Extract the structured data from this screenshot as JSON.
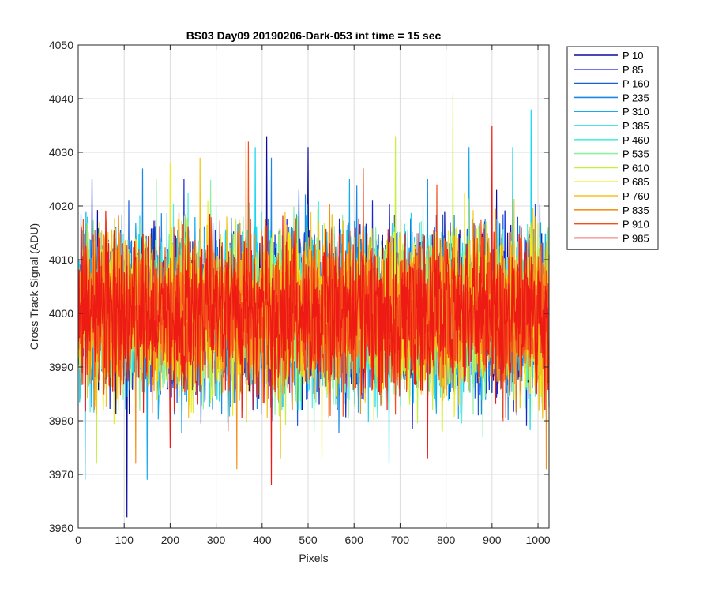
{
  "chart_data": {
    "type": "line",
    "title": "BS03 Day09 20190206-Dark-053 int time = 15 sec",
    "xlabel": "Pixels",
    "ylabel": "Cross Track Signal (ADU)",
    "xlim": [
      0,
      1024
    ],
    "ylim": [
      3960,
      4050
    ],
    "xticks": [
      "0",
      "100",
      "200",
      "300",
      "400",
      "500",
      "600",
      "700",
      "800",
      "900",
      "1000"
    ],
    "yticks": [
      "3960",
      "3970",
      "3980",
      "3990",
      "4000",
      "4010",
      "4020",
      "4030",
      "4040",
      "4050"
    ],
    "grid": true,
    "legend_position": "outside-top-right",
    "noise": {
      "center": 4000,
      "amplitude": 12
    },
    "series": [
      {
        "name": "P 10",
        "color": "#0d0d9e",
        "spikes": [
          [
            106,
            3962
          ],
          [
            410,
            4033
          ],
          [
            500,
            4031
          ],
          [
            910,
            4023
          ]
        ]
      },
      {
        "name": "P 85",
        "color": "#1425d6",
        "spikes": [
          [
            30,
            4025
          ],
          [
            230,
            4025
          ],
          [
            640,
            4021
          ],
          [
            975,
            3979
          ]
        ]
      },
      {
        "name": "P 160",
        "color": "#1a5bdc",
        "spikes": [
          [
            110,
            4021
          ],
          [
            480,
            4023
          ],
          [
            870,
            3981
          ]
        ]
      },
      {
        "name": "P 235",
        "color": "#1c88e6",
        "spikes": [
          [
            140,
            4027
          ],
          [
            420,
            4029
          ],
          [
            760,
            4025
          ]
        ]
      },
      {
        "name": "P 310",
        "color": "#18a9ea",
        "spikes": [
          [
            15,
            3969
          ],
          [
            150,
            3969
          ],
          [
            590,
            4025
          ],
          [
            850,
            4031
          ]
        ]
      },
      {
        "name": "P 385",
        "color": "#16d6f0",
        "spikes": [
          [
            20,
            4018
          ],
          [
            385,
            4031
          ],
          [
            676,
            3972
          ],
          [
            945,
            4031
          ],
          [
            985,
            4038
          ]
        ]
      },
      {
        "name": "P 460",
        "color": "#4ff0dc",
        "spikes": [
          [
            300,
            4020
          ],
          [
            560,
            3983
          ]
        ]
      },
      {
        "name": "P 535",
        "color": "#8ef0a0",
        "spikes": [
          [
            170,
            4025
          ],
          [
            880,
            3977
          ]
        ]
      },
      {
        "name": "P 610",
        "color": "#c6f03c",
        "spikes": [
          [
            40,
            3972
          ],
          [
            815,
            4041
          ],
          [
            690,
            4033
          ]
        ]
      },
      {
        "name": "P 685",
        "color": "#f0ec1c",
        "spikes": [
          [
            200,
            4028
          ],
          [
            530,
            3973
          ]
        ]
      },
      {
        "name": "P 760",
        "color": "#f6c21a",
        "spikes": [
          [
            265,
            4029
          ],
          [
            440,
            3973
          ]
        ]
      },
      {
        "name": "P 835",
        "color": "#f5901c",
        "spikes": [
          [
            125,
            3972
          ],
          [
            345,
            3971
          ],
          [
            365,
            4032
          ],
          [
            1018,
            3971
          ]
        ]
      },
      {
        "name": "P 910",
        "color": "#f24d1a",
        "spikes": [
          [
            370,
            4032
          ],
          [
            620,
            4027
          ],
          [
            780,
            4024
          ]
        ]
      },
      {
        "name": "P 985",
        "color": "#ee1a14",
        "spikes": [
          [
            420,
            3968
          ],
          [
            900,
            4035
          ],
          [
            200,
            3975
          ],
          [
            760,
            3973
          ]
        ]
      }
    ]
  }
}
